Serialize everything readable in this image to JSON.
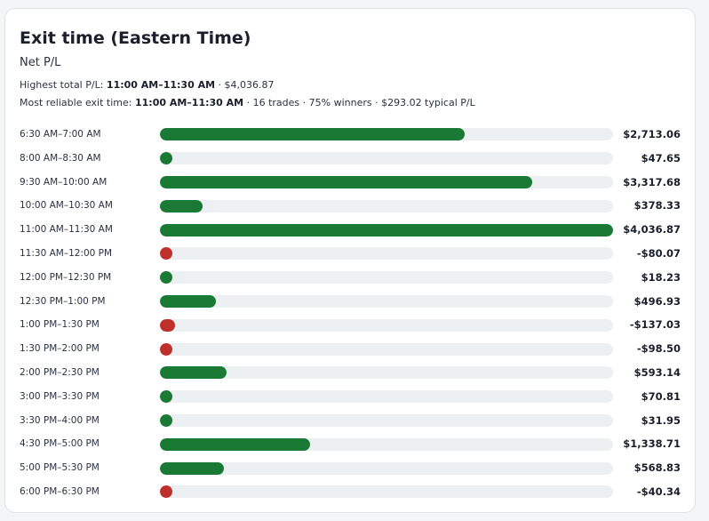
{
  "card": {
    "title": "Exit time (Eastern Time)",
    "subtitle": "Net P/L",
    "highest": {
      "prefix": "Highest total P/L: ",
      "window": "11:00 AM–11:30 AM",
      "rest": " · $4,036.87"
    },
    "reliable": {
      "prefix": "Most reliable exit time: ",
      "window": "11:00 AM–11:30 AM",
      "rest": " · 16 trades · 75% winners · $293.02 typical P/L"
    }
  },
  "colors": {
    "positive": "#1a7a35",
    "negative": "#c0302a",
    "track": "#edf0f3"
  },
  "chart_data": {
    "type": "bar",
    "orientation": "horizontal",
    "title": "Exit time (Eastern Time)",
    "subtitle": "Net P/L",
    "xlim": [
      0,
      4036.87
    ],
    "grid": false,
    "categories": [
      "6:30 AM–7:00 AM",
      "8:00 AM–8:30 AM",
      "9:30 AM–10:00 AM",
      "10:00 AM–10:30 AM",
      "11:00 AM–11:30 AM",
      "11:30 AM–12:00 PM",
      "12:00 PM–12:30 PM",
      "12:30 PM–1:00 PM",
      "1:00 PM–1:30 PM",
      "1:30 PM–2:00 PM",
      "2:00 PM–2:30 PM",
      "3:00 PM–3:30 PM",
      "3:30 PM–4:00 PM",
      "4:30 PM–5:00 PM",
      "5:00 PM–5:30 PM",
      "6:00 PM–6:30 PM"
    ],
    "values": [
      2713.06,
      47.65,
      3317.68,
      378.33,
      4036.87,
      -80.07,
      18.23,
      496.93,
      -137.03,
      -98.5,
      593.14,
      70.81,
      31.95,
      1338.71,
      568.83,
      -40.34
    ],
    "value_labels": [
      "$2,713.06",
      "$47.65",
      "$3,317.68",
      "$378.33",
      "$4,036.87",
      "-$80.07",
      "$18.23",
      "$496.93",
      "-$137.03",
      "-$98.50",
      "$593.14",
      "$70.81",
      "$31.95",
      "$1,338.71",
      "$568.83",
      "-$40.34"
    ]
  }
}
